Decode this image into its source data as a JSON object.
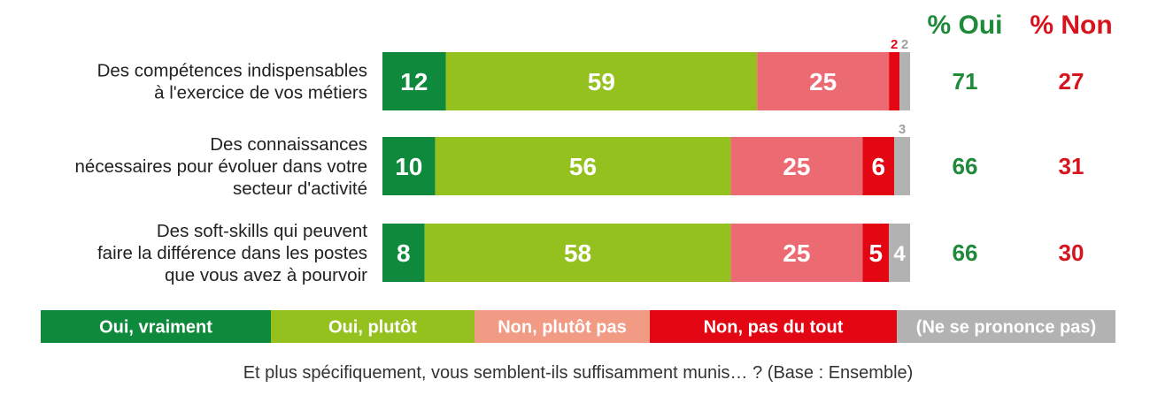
{
  "chart_data": {
    "type": "bar",
    "orientation": "horizontal",
    "stacked": true,
    "categories": [
      [
        "Des compétences indispensables",
        "à l'exercice de vos métiers"
      ],
      [
        "Des connaissances",
        "nécessaires pour évoluer dans votre",
        "secteur d'activité"
      ],
      [
        "Des soft-skills qui peuvent",
        "faire la différence dans les postes",
        "que vous avez à pourvoir"
      ]
    ],
    "series": [
      {
        "name": "Oui, vraiment",
        "color": "#0f8a3c",
        "values": [
          12,
          10,
          8
        ]
      },
      {
        "name": "Oui, plutôt",
        "color": "#95c11f",
        "values": [
          59,
          56,
          58
        ]
      },
      {
        "name": "Non, plutôt pas",
        "color": "#ec6a72",
        "values": [
          25,
          25,
          25
        ]
      },
      {
        "name": "Non, pas du tout",
        "color": "#e30613",
        "values": [
          2,
          6,
          5
        ]
      },
      {
        "name": "(Ne se prononce pas)",
        "color": "#b2b2b2",
        "values": [
          2,
          3,
          4
        ]
      }
    ],
    "summary": {
      "oui_label": "% Oui",
      "non_label": "% Non",
      "oui_color": "#1e8a3a",
      "non_color": "#d7141e",
      "oui": [
        71,
        66,
        66
      ],
      "non": [
        27,
        31,
        30
      ]
    },
    "legend_colors": [
      "#0f8a3c",
      "#95c11f",
      "#f19b84",
      "#e30613",
      "#b2b2b2"
    ],
    "legend_position": "bottom",
    "footnote": "Et plus spécifiquement, vous semblent-ils suffisamment munis… ? (Base : Ensemble)"
  }
}
